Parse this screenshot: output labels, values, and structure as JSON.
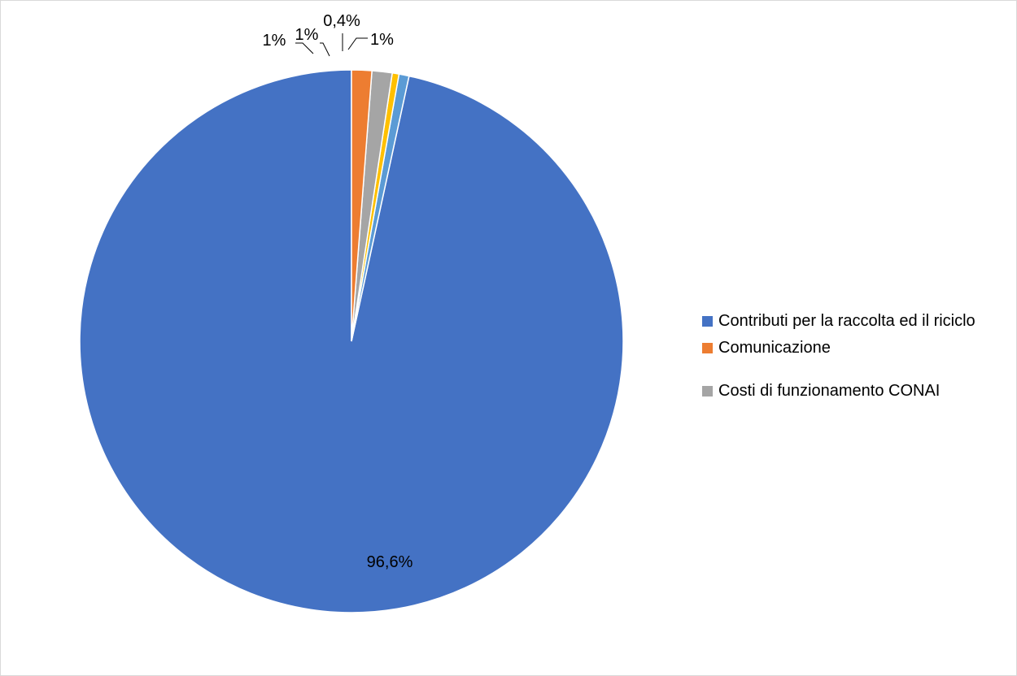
{
  "chart_data": {
    "type": "pie",
    "title": "",
    "slices": [
      {
        "label": "Contributi per la raccolta ed il riciclo",
        "value": 96.6,
        "display": "96,6%",
        "color": "#4472C4",
        "in_legend": true
      },
      {
        "label": "",
        "value": 0.6,
        "display": "1%",
        "color": "#5B9BD5",
        "in_legend": false
      },
      {
        "label": "",
        "value": 0.4,
        "display": "0,4%",
        "color": "#FFC000",
        "in_legend": false
      },
      {
        "label": "Costi di funzionamento CONAI",
        "value": 1.2,
        "display": "1%",
        "color": "#A5A5A5",
        "in_legend": true
      },
      {
        "label": "Comunicazione",
        "value": 1.2,
        "display": "1%",
        "color": "#ED7D31",
        "in_legend": true
      }
    ],
    "start_angle": "12 o'clock",
    "direction": "counter-clockwise",
    "legend_position": "right"
  },
  "legend": {
    "items": [
      {
        "label": "Contributi per la raccolta ed il riciclo",
        "color": "#4472C4"
      },
      {
        "label": "Comunicazione",
        "color": "#ED7D31"
      },
      {
        "label": "Costi di funzionamento CONAI",
        "color": "#A5A5A5"
      }
    ]
  }
}
